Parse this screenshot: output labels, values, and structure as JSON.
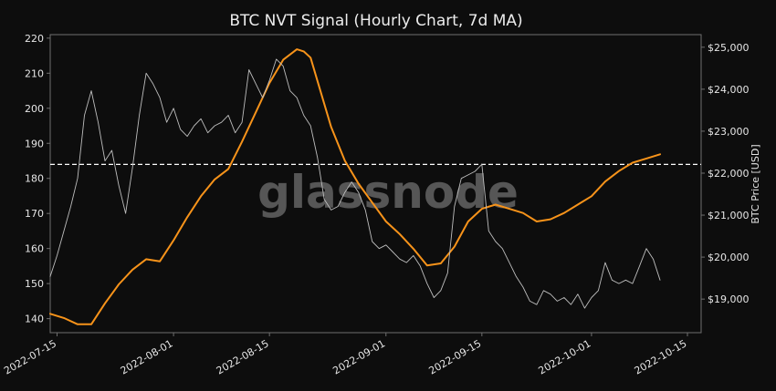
{
  "chart_data": {
    "type": "line",
    "title": "BTC NVT Signal (Hourly Chart, 7d MA)",
    "watermark": "glassnode",
    "xlabel": "",
    "ylabel_left": "",
    "ylabel_right": "BTC Price [USD]",
    "x_range": [
      "2022-07-14",
      "2022-10-17"
    ],
    "x_ticks": [
      "2022-07-15",
      "2022-08-01",
      "2022-08-15",
      "2022-09-01",
      "2022-09-15",
      "2022-10-01",
      "2022-10-15"
    ],
    "ylim_left": [
      136,
      221
    ],
    "ylim_right": [
      18200,
      25300
    ],
    "yticks_left": [
      140,
      150,
      160,
      170,
      180,
      190,
      200,
      210,
      220
    ],
    "yticks_right": [
      19000,
      20000,
      21000,
      22000,
      23000,
      24000,
      25000
    ],
    "yticks_right_labels": [
      "$19,000",
      "$20,000",
      "$21,000",
      "$22,000",
      "$23,000",
      "$24,000",
      "$25,000"
    ],
    "grid": false,
    "reference_line": {
      "axis": "left",
      "value": 184,
      "style": "dashed",
      "color": "#ffffff"
    },
    "colors": {
      "background": "#0d0d0d",
      "nvt": "#bdbdbd",
      "ma": "#f7931a",
      "axis": "#6e6e6e",
      "text": "#e6e6e6"
    },
    "series": [
      {
        "axis": "right",
        "x": [
          "2022-07-14",
          "2022-07-16",
          "2022-07-18",
          "2022-07-20",
          "2022-07-22",
          "2022-07-24",
          "2022-07-26",
          "2022-07-28",
          "2022-07-30",
          "2022-08-01",
          "2022-08-03",
          "2022-08-05",
          "2022-08-07",
          "2022-08-09",
          "2022-08-11",
          "2022-08-13",
          "2022-08-15",
          "2022-08-17",
          "2022-08-19",
          "2022-08-20",
          "2022-08-21",
          "2022-08-22",
          "2022-08-24",
          "2022-08-26",
          "2022-08-28",
          "2022-08-30",
          "2022-09-01",
          "2022-09-03",
          "2022-09-05",
          "2022-09-07",
          "2022-09-09",
          "2022-09-11",
          "2022-09-13",
          "2022-09-15",
          "2022-09-17",
          "2022-09-19",
          "2022-09-21",
          "2022-09-23",
          "2022-09-25",
          "2022-09-27",
          "2022-09-29",
          "2022-10-01",
          "2022-10-03",
          "2022-10-05",
          "2022-10-07",
          "2022-10-09",
          "2022-10-11"
        ],
        "values": [
          18650,
          18550,
          18400,
          18400,
          18900,
          19350,
          19700,
          19950,
          19900,
          20400,
          20950,
          21450,
          21850,
          22100,
          22750,
          23450,
          24150,
          24700,
          24950,
          24900,
          24750,
          24200,
          23100,
          22300,
          21750,
          21300,
          20850,
          20550,
          20200,
          19800,
          19850,
          20250,
          20850,
          21150,
          21250,
          21150,
          21050,
          20850,
          20900,
          21050,
          21250,
          21450,
          21800,
          22050,
          22250,
          22350,
          22450
        ]
      },
      {
        "axis": "left",
        "x": [
          "2022-07-14",
          "2022-07-15",
          "2022-07-16",
          "2022-07-17",
          "2022-07-18",
          "2022-07-19",
          "2022-07-20",
          "2022-07-21",
          "2022-07-22",
          "2022-07-23",
          "2022-07-24",
          "2022-07-25",
          "2022-07-26",
          "2022-07-27",
          "2022-07-28",
          "2022-07-29",
          "2022-07-30",
          "2022-07-31",
          "2022-08-01",
          "2022-08-02",
          "2022-08-03",
          "2022-08-04",
          "2022-08-05",
          "2022-08-06",
          "2022-08-07",
          "2022-08-08",
          "2022-08-09",
          "2022-08-10",
          "2022-08-11",
          "2022-08-12",
          "2022-08-13",
          "2022-08-14",
          "2022-08-15",
          "2022-08-16",
          "2022-08-17",
          "2022-08-18",
          "2022-08-19",
          "2022-08-20",
          "2022-08-21",
          "2022-08-22",
          "2022-08-23",
          "2022-08-24",
          "2022-08-25",
          "2022-08-26",
          "2022-08-27",
          "2022-08-28",
          "2022-08-29",
          "2022-08-30",
          "2022-08-31",
          "2022-09-01",
          "2022-09-02",
          "2022-09-03",
          "2022-09-04",
          "2022-09-05",
          "2022-09-06",
          "2022-09-07",
          "2022-09-08",
          "2022-09-09",
          "2022-09-10",
          "2022-09-11",
          "2022-09-12",
          "2022-09-13",
          "2022-09-14",
          "2022-09-15",
          "2022-09-16",
          "2022-09-17",
          "2022-09-18",
          "2022-09-19",
          "2022-09-20",
          "2022-09-21",
          "2022-09-22",
          "2022-09-23",
          "2022-09-24",
          "2022-09-25",
          "2022-09-26",
          "2022-09-27",
          "2022-09-28",
          "2022-09-29",
          "2022-09-30",
          "2022-10-01",
          "2022-10-02",
          "2022-10-03",
          "2022-10-04",
          "2022-10-05",
          "2022-10-06",
          "2022-10-07",
          "2022-10-08",
          "2022-10-09",
          "2022-10-10",
          "2022-10-11"
        ],
        "values": [
          152,
          158,
          165,
          172,
          180,
          198,
          205,
          196,
          185,
          188,
          178,
          170,
          183,
          198,
          210,
          207,
          203,
          196,
          200,
          194,
          192,
          195,
          197,
          193,
          195,
          196,
          198,
          193,
          196,
          211,
          207,
          203,
          208,
          214,
          212,
          205,
          203,
          198,
          195,
          186,
          174,
          171,
          172,
          176,
          179,
          176,
          171,
          162,
          160,
          161,
          159,
          157,
          156,
          158,
          155,
          150,
          146,
          148,
          153,
          172,
          180,
          181,
          182,
          184,
          165,
          162,
          160,
          156,
          152,
          149,
          145,
          144,
          148,
          147,
          145,
          146,
          144,
          147,
          143,
          146,
          148,
          156,
          151,
          150,
          151,
          150,
          155,
          160,
          157,
          151
        ]
      }
    ]
  }
}
